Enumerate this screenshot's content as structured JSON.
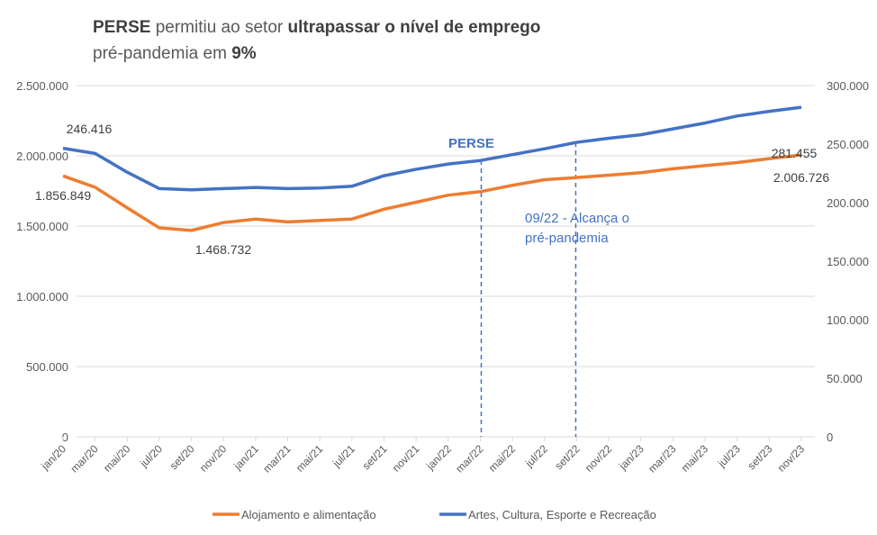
{
  "title": {
    "line1": [
      {
        "text": "PERSE",
        "bold": true
      },
      {
        "text": " permitiu ao setor ",
        "bold": false
      },
      {
        "text": "ultrapassar o nível de emprego",
        "bold": true
      }
    ],
    "line2": [
      {
        "text": "pré-pandemia ",
        "bold": false
      },
      {
        "text": "em ",
        "bold": false
      },
      {
        "text": "9%",
        "bold": true
      }
    ]
  },
  "chart_data": {
    "type": "line",
    "categories": [
      "jan/20",
      "mar/20",
      "mai/20",
      "jul/20",
      "set/20",
      "nov/20",
      "jan/21",
      "mar/21",
      "mai/21",
      "jul/21",
      "set/21",
      "nov/21",
      "jan/22",
      "mar/22",
      "mai/22",
      "jul/22",
      "set/22",
      "nov/22",
      "jan/23",
      "mar/23",
      "mai/23",
      "jul/23",
      "set/23",
      "nov/23"
    ],
    "y_left": {
      "range": [
        0,
        2500000
      ],
      "ticks": [
        "0",
        "500.000",
        "1.000.000",
        "1.500.000",
        "2.000.000",
        "2.500.000"
      ]
    },
    "y_right": {
      "range": [
        0,
        300000
      ],
      "ticks": [
        "0",
        "50.000",
        "100.000",
        "150.000",
        "200.000",
        "250.000",
        "300.000"
      ]
    },
    "grid": true,
    "legend_position": "bottom",
    "series": [
      {
        "name": "Alojamento e alimentação",
        "axis": "left",
        "color": "#ED7D31",
        "values": [
          1856849,
          1776000,
          1630000,
          1487000,
          1468732,
          1525000,
          1550000,
          1530000,
          1540000,
          1550000,
          1620000,
          1670000,
          1720000,
          1745000,
          1790000,
          1830000,
          1845000,
          1862000,
          1880000,
          1908000,
          1930000,
          1952000,
          1980000,
          2006726
        ]
      },
      {
        "name": "Artes, Cultura, Esporte e Recreação",
        "axis": "right",
        "color": "#4472C4",
        "values": [
          246416,
          242000,
          226000,
          212000,
          211000,
          212000,
          213000,
          212000,
          212500,
          214000,
          223000,
          228500,
          233000,
          236000,
          241000,
          246000,
          251500,
          255000,
          258000,
          263000,
          268000,
          274000,
          278000,
          281455
        ]
      }
    ],
    "data_labels": [
      {
        "series": 0,
        "index": 0,
        "text": "1.856.849"
      },
      {
        "series": 0,
        "index": 4,
        "text": "1.468.732"
      },
      {
        "series": 0,
        "index": 23,
        "text": "2.006.726"
      },
      {
        "series": 1,
        "index": 0,
        "text": "246.416"
      },
      {
        "series": 1,
        "index": 23,
        "text": "281.455"
      }
    ],
    "annotations": [
      {
        "category": "mar/22",
        "text": [
          "PERSE"
        ]
      },
      {
        "category": "set/22",
        "text": [
          "09/22 - Alcança o",
          "pré-pandemia"
        ]
      }
    ],
    "annotation_color": "#4472C4"
  }
}
